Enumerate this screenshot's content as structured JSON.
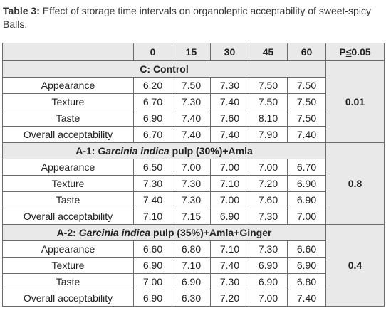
{
  "caption": {
    "label": "Table 3:",
    "text": " Effect of storage time intervals on organoleptic acceptability of sweet-spicy Balls."
  },
  "header": {
    "blank": "",
    "times": [
      "0",
      "15",
      "30",
      "45",
      "60"
    ],
    "p_prefix": "P",
    "p_le": "≤",
    "p_value": "0.05"
  },
  "groups": [
    {
      "title_pre": "C: Control",
      "title_italic": "",
      "title_post": "",
      "p": "0.01",
      "rows": [
        {
          "label": "Appearance",
          "values": [
            "6.20",
            "7.50",
            "7.30",
            "7.50",
            "7.50"
          ]
        },
        {
          "label": "Texture",
          "values": [
            "6.70",
            "7.30",
            "7.40",
            "7.50",
            "7.50"
          ]
        },
        {
          "label": "Taste",
          "values": [
            "6.90",
            "7.40",
            "7.60",
            "8.10",
            "7.50"
          ]
        },
        {
          "label": "Overall acceptability",
          "values": [
            "6.70",
            "7.40",
            "7.40",
            "7.90",
            "7.40"
          ]
        }
      ]
    },
    {
      "title_pre": "A-1: ",
      "title_italic": "Garcinia indica",
      "title_post": " pulp (30%)+Amla",
      "p": "0.8",
      "rows": [
        {
          "label": "Appearance",
          "values": [
            "6.50",
            "7.00",
            "7.00",
            "7.00",
            "6.70"
          ]
        },
        {
          "label": "Texture",
          "values": [
            "7.30",
            "7.30",
            "7.10",
            "7.20",
            "6.90"
          ]
        },
        {
          "label": "Taste",
          "values": [
            "7.40",
            "7.30",
            "7.00",
            "7.60",
            "6.90"
          ]
        },
        {
          "label": "Overall acceptability",
          "values": [
            "7.10",
            "7.15",
            "6.90",
            "7.30",
            "7.00"
          ]
        }
      ]
    },
    {
      "title_pre": "A-2: ",
      "title_italic": "Garcinia indica",
      "title_post": " pulp (35%)+Amla+Ginger",
      "p": "0.4",
      "rows": [
        {
          "label": "Appearance",
          "values": [
            "6.60",
            "6.80",
            "7.10",
            "7.30",
            "6.60"
          ]
        },
        {
          "label": "Texture",
          "values": [
            "6.90",
            "7.10",
            "7.40",
            "6.90",
            "6.90"
          ]
        },
        {
          "label": "Taste",
          "values": [
            "7.00",
            "6.90",
            "7.30",
            "6.90",
            "6.80"
          ]
        },
        {
          "label": "Overall acceptability",
          "values": [
            "6.90",
            "6.30",
            "7.20",
            "7.00",
            "7.40"
          ]
        }
      ]
    }
  ]
}
